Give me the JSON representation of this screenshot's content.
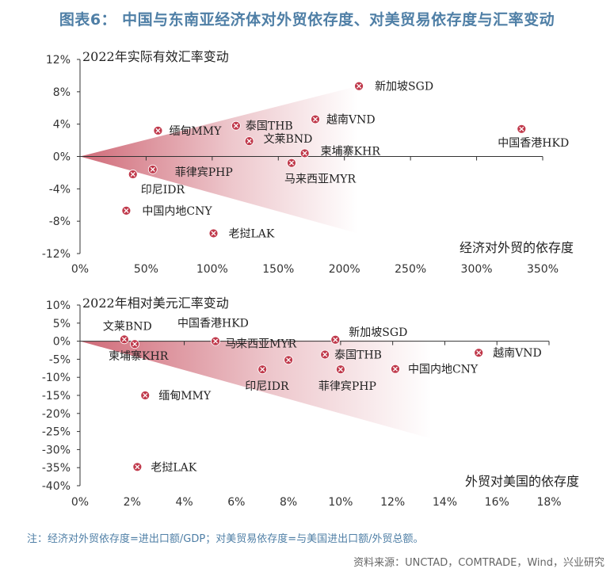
{
  "title": "图表6： 中国与东南亚经济体对外贸依存度、对美贸易依存度与汇率变动",
  "note": "注：经济对外贸依存度=进出口额/GDP；对美贸易依存度=与美国进出口额/外贸总额。",
  "source": "资料来源：UNCTAD，COMTRADE，Wind，兴业研究",
  "colors": {
    "marker": "#c0394b",
    "cone": "#c0394b",
    "title": "#4f7fa6",
    "axis": "#333333"
  },
  "chart_data": [
    {
      "type": "scatter",
      "title": "2022年实际有效汇率变动",
      "xlabel": "经济对外贸的依存度",
      "ylabel": "",
      "xlim": [
        0,
        350
      ],
      "ylim": [
        -12,
        12
      ],
      "x_unit": "%",
      "y_unit": "%",
      "xticks": [
        0,
        50,
        100,
        150,
        200,
        250,
        300,
        350
      ],
      "yticks": [
        12,
        8,
        4,
        0,
        -4,
        -8,
        -12
      ],
      "xtick_labels": [
        "0%",
        "50%",
        "100%",
        "150%",
        "200%",
        "250%",
        "300%",
        "350%"
      ],
      "ytick_labels": [
        "12%",
        "8%",
        "4%",
        "0%",
        "-4%",
        "-8%",
        "-12%"
      ],
      "grid": false,
      "points": [
        {
          "label": "新加坡SGD",
          "x": 211,
          "y": 8.7
        },
        {
          "label": "中国香港HKD",
          "x": 334,
          "y": 3.4
        },
        {
          "label": "越南VND",
          "x": 178,
          "y": 4.6
        },
        {
          "label": "泰国THB",
          "x": 118,
          "y": 3.8
        },
        {
          "label": "缅甸MMY",
          "x": 59,
          "y": 3.2
        },
        {
          "label": "文莱BND",
          "x": 128,
          "y": 1.9
        },
        {
          "label": "柬埔寨KHR",
          "x": 170,
          "y": 0.4
        },
        {
          "label": "马来西亚MYR",
          "x": 160,
          "y": -0.8
        },
        {
          "label": "菲律宾PHP",
          "x": 55,
          "y": -1.6
        },
        {
          "label": "印尼IDR",
          "x": 40,
          "y": -2.2
        },
        {
          "label": "中国内地CNY",
          "x": 35,
          "y": -6.7
        },
        {
          "label": "老挝LAK",
          "x": 101,
          "y": -9.5
        }
      ]
    },
    {
      "type": "scatter",
      "title": "2022年相对美元汇率变动",
      "xlabel": "外贸对美国的依存度",
      "ylabel": "",
      "xlim": [
        0,
        18
      ],
      "ylim": [
        -40,
        10
      ],
      "x_unit": "%",
      "y_unit": "%",
      "xticks": [
        0,
        2,
        4,
        6,
        8,
        10,
        12,
        14,
        16,
        18
      ],
      "yticks": [
        10,
        5,
        0,
        -5,
        -10,
        -15,
        -20,
        -25,
        -30,
        -35,
        -40
      ],
      "xtick_labels": [
        "0%",
        "2%",
        "4%",
        "6%",
        "8%",
        "10%",
        "12%",
        "14%",
        "16%",
        "18%"
      ],
      "ytick_labels": [
        "10%",
        "5%",
        "0%",
        "-5%",
        "-10%",
        "-15%",
        "-20%",
        "-25%",
        "-30%",
        "-35%",
        "-40%"
      ],
      "grid": false,
      "points": [
        {
          "label": "文莱BND",
          "x": 1.7,
          "y": 0.5
        },
        {
          "label": "柬埔寨KHR",
          "x": 2.1,
          "y": -0.8
        },
        {
          "label": "中国香港HKD",
          "x": 5.2,
          "y": 0.0
        },
        {
          "label": "新加坡SGD",
          "x": 9.8,
          "y": 0.4
        },
        {
          "label": "马来西亚MYR",
          "x": 8.0,
          "y": -5.2
        },
        {
          "label": "泰国THB",
          "x": 9.4,
          "y": -3.7
        },
        {
          "label": "越南VND",
          "x": 15.3,
          "y": -3.2
        },
        {
          "label": "印尼IDR",
          "x": 7.0,
          "y": -7.8
        },
        {
          "label": "菲律宾PHP",
          "x": 10.0,
          "y": -7.8
        },
        {
          "label": "中国内地CNY",
          "x": 12.1,
          "y": -7.7
        },
        {
          "label": "缅甸MMY",
          "x": 2.5,
          "y": -15.0
        },
        {
          "label": "老挝LAK",
          "x": 2.2,
          "y": -34.8
        }
      ]
    }
  ]
}
